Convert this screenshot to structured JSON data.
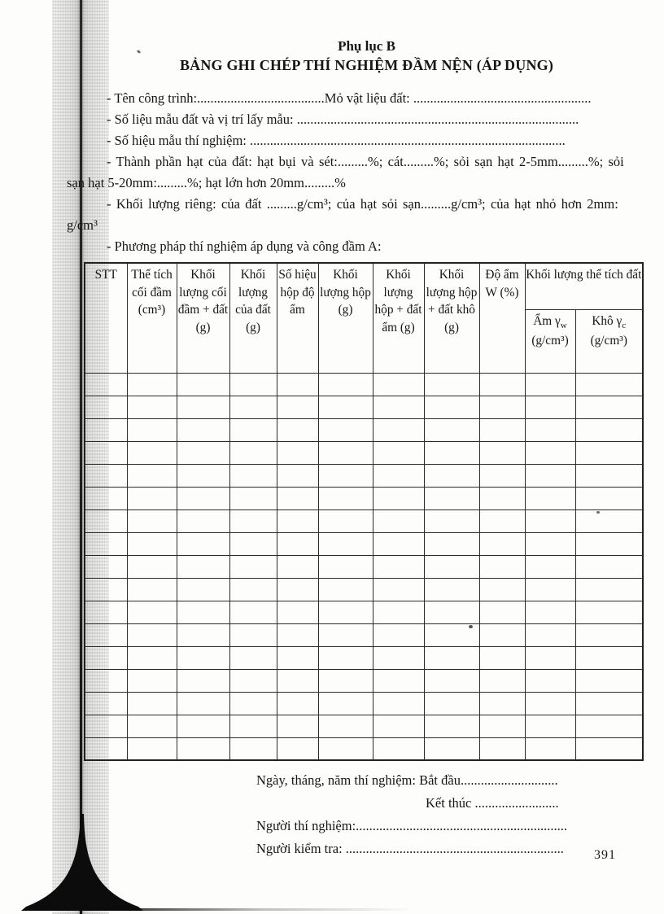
{
  "document": {
    "appendix": "Phụ lục B",
    "title": "BẢNG GHI CHÉP THÍ NGHIỆM ĐẦM NỆN (ÁP DỤNG)",
    "page_number": "391"
  },
  "form": {
    "lines": [
      "- Tên công trình:......................................Mỏ vật liệu đất: .....................................................",
      "- Số liệu mẫu đất và vị trí lấy mẫu: ....................................................................................",
      "- Số hiệu mẫu thí nghiệm: ..............................................................................................",
      "- Thành phần hạt của đất: hạt bụi và sét:.........%; cát.........%; sỏi sạn hạt 2-5mm.........%; sỏi",
      "sạn hạt 5-20mm:.........%; hạt lớn hơn 20mm.........%",
      "- Khối lượng riêng: của đất .........g/cm³; của hạt sỏi sạn.........g/cm³; của hạt nhỏ hơn 2mm:",
      "g/cm³",
      "- Phương pháp thí nghiệm áp dụng và công đầm A:"
    ]
  },
  "table": {
    "headers": {
      "stt": "STT",
      "the_tich_coi_dam": "Thể tích cối đầm (cm³)",
      "kl_coi_dam_dat": "Khối lượng cối đầm + đất (g)",
      "kl_cua_dat": "Khối lượng của đất (g)",
      "so_hieu_hop_do_am": "Số hiệu hộp độ ẩm",
      "kl_hop": "Khối lượng hộp (g)",
      "kl_hop_dat_am": "Khối lượng hộp + đất ẩm (g)",
      "kl_hop_dat_kho": "Khối lượng hộp + đất khô (g)",
      "do_am": "Độ ẩm W (%)",
      "group_kl_the_tich_dat": "Khối lượng thể tích đất",
      "am_gamma_main": "Ẩm γ",
      "am_gamma_sub": "w",
      "am_gamma_unit": "(g/cm³)",
      "kho_gamma_main": "Khô γ",
      "kho_gamma_sub": "c",
      "kho_gamma_unit": "(g/cm³)"
    },
    "empty_row_count": 17,
    "leaf_column_count": 11
  },
  "footer": {
    "lines": [
      "Ngày, tháng, năm thí nghiệm: Bắt đầu.............................",
      "Kết thúc .........................",
      "Người thí nghiệm:...............................................................",
      "Người kiểm tra: ................................................................."
    ]
  }
}
